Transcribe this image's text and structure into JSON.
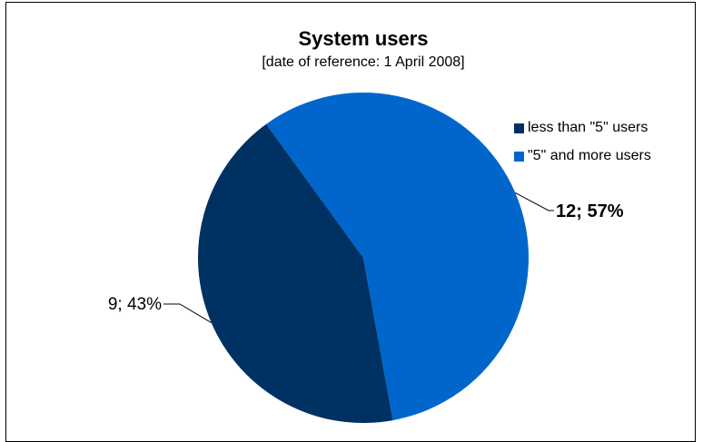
{
  "chart_data": {
    "type": "pie",
    "title": "System users",
    "subtitle": "[date of reference: 1 April 2008]",
    "categories": [
      "less than \"5\" users",
      "\"5\" and more users"
    ],
    "values": [
      9,
      12
    ],
    "percent": [
      43,
      57
    ],
    "data_labels": [
      "9; 43%",
      "12; 57%"
    ],
    "colors": [
      "#003163",
      "#0066CC"
    ],
    "legend_position": "right"
  }
}
